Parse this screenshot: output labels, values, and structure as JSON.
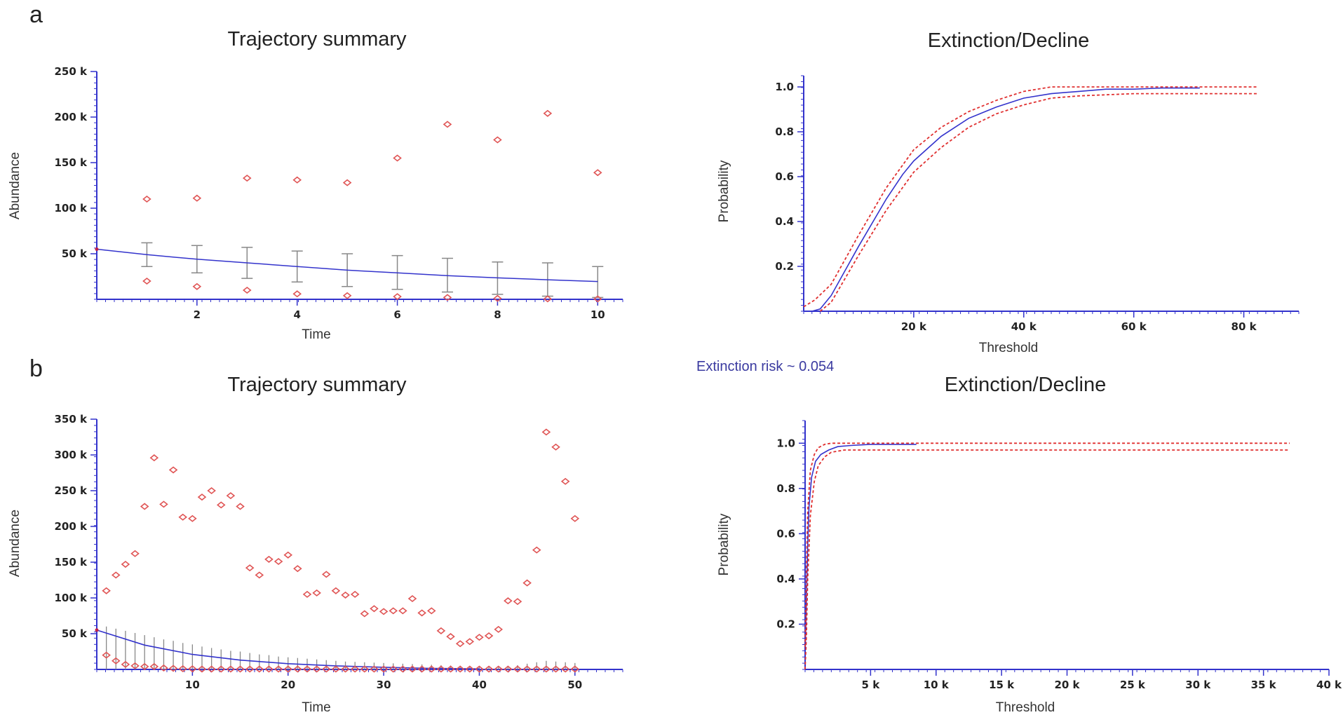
{
  "panels": {
    "a": "a",
    "b": "b"
  },
  "extinction_risk_text": "Extinction risk ~ 0.054",
  "colors": {
    "mean_line": "#3333cc",
    "markers": "#e05555",
    "error_bars": "#888888",
    "axis": "#3333cc",
    "bounds": "#e03030"
  },
  "chart_data": [
    {
      "id": "a-trajectory",
      "type": "line",
      "title": "Trajectory summary",
      "xlabel": "Time",
      "ylabel": "Abundance",
      "xlim": [
        0,
        10.5
      ],
      "ylim": [
        0,
        250000
      ],
      "xticks": [
        2,
        4,
        6,
        8,
        10
      ],
      "xtick_labels": [
        "2",
        "4",
        "6",
        "8",
        "10"
      ],
      "yticks": [
        50000,
        100000,
        150000,
        200000,
        250000
      ],
      "ytick_labels": [
        "50 k",
        "100 k",
        "150 k",
        "200 k",
        "250 k"
      ],
      "x": [
        0,
        1,
        2,
        3,
        4,
        5,
        6,
        7,
        8,
        9,
        10
      ],
      "mean": [
        55000,
        49000,
        44000,
        40000,
        36000,
        32000,
        29000,
        26000,
        23500,
        21500,
        19500
      ],
      "lower": [
        55000,
        36000,
        29000,
        23000,
        19000,
        14000,
        11000,
        8000,
        5500,
        3500,
        2000
      ],
      "upper": [
        55000,
        62000,
        59000,
        57000,
        53000,
        50000,
        48000,
        45000,
        41000,
        40000,
        36000
      ],
      "max": [
        null,
        110000,
        111000,
        133000,
        131000,
        128000,
        155000,
        192000,
        175000,
        204000,
        139000
      ],
      "min": [
        null,
        20000,
        14000,
        10000,
        6000,
        4000,
        3000,
        2000,
        1000,
        500,
        500
      ]
    },
    {
      "id": "a-extinction",
      "type": "line",
      "title": "Extinction/Decline",
      "xlabel": "Threshold",
      "ylabel": "Probability",
      "xlim": [
        0,
        90000
      ],
      "ylim": [
        0,
        1.05
      ],
      "xticks": [
        20000,
        40000,
        60000,
        80000
      ],
      "xtick_labels": [
        "20 k",
        "40 k",
        "60 k",
        "80 k"
      ],
      "yticks": [
        0.2,
        0.4,
        0.6,
        0.8,
        1.0
      ],
      "ytick_labels": [
        "0.2",
        "0.4",
        "0.6",
        "0.8",
        "1.0"
      ],
      "series": [
        {
          "name": "probability",
          "style": "solid",
          "x": [
            1500,
            3000,
            5000,
            10000,
            15000,
            18000,
            20000,
            25000,
            30000,
            35000,
            40000,
            45000,
            50000,
            55000,
            60000,
            65000,
            70000,
            72000
          ],
          "values": [
            0,
            0.01,
            0.07,
            0.29,
            0.5,
            0.61,
            0.67,
            0.78,
            0.86,
            0.91,
            0.95,
            0.97,
            0.98,
            0.99,
            0.99,
            0.995,
            0.995,
            0.995
          ]
        },
        {
          "name": "upper bound",
          "style": "dashed",
          "x": [
            0,
            2000,
            5000,
            10000,
            15000,
            20000,
            25000,
            30000,
            35000,
            40000,
            45000,
            50000,
            60000,
            70000,
            80000,
            82500
          ],
          "values": [
            0.02,
            0.05,
            0.12,
            0.34,
            0.55,
            0.72,
            0.82,
            0.89,
            0.94,
            0.98,
            1.0,
            1.0,
            1.0,
            1.0,
            1.0,
            1.0
          ]
        },
        {
          "name": "lower bound",
          "style": "dashed",
          "x": [
            3000,
            5000,
            10000,
            15000,
            20000,
            25000,
            30000,
            35000,
            40000,
            45000,
            50000,
            60000,
            70000,
            80000,
            82500
          ],
          "values": [
            0,
            0.04,
            0.25,
            0.45,
            0.62,
            0.73,
            0.82,
            0.88,
            0.92,
            0.95,
            0.96,
            0.97,
            0.97,
            0.97,
            0.97
          ]
        }
      ]
    },
    {
      "id": "b-trajectory",
      "type": "line",
      "title": "Trajectory summary",
      "xlabel": "Time",
      "ylabel": "Abundance",
      "xlim": [
        0,
        55
      ],
      "ylim": [
        0,
        350000
      ],
      "xticks": [
        10,
        20,
        30,
        40,
        50
      ],
      "xtick_labels": [
        "10",
        "20",
        "30",
        "40",
        "50"
      ],
      "yticks": [
        50000,
        100000,
        150000,
        200000,
        250000,
        300000,
        350000
      ],
      "ytick_labels": [
        "50 k",
        "100 k",
        "150 k",
        "200 k",
        "250 k",
        "300 k",
        "350 k"
      ],
      "x": [
        0,
        5,
        10,
        15,
        20,
        25,
        30,
        35,
        40
      ],
      "mean": [
        55000,
        34000,
        21000,
        13000,
        8000,
        5000,
        3000,
        1500,
        800
      ],
      "upper_bar_x": [
        1,
        2,
        3,
        4,
        5,
        6,
        7,
        8,
        9,
        10,
        11,
        12,
        13,
        14,
        15,
        16,
        17,
        18,
        19,
        20,
        21,
        22,
        23,
        24,
        25,
        26,
        27,
        28,
        29,
        30,
        31,
        32,
        33,
        34,
        35,
        36,
        37,
        38,
        39,
        40,
        41,
        42,
        43,
        44,
        45,
        46,
        47,
        48,
        49,
        50
      ],
      "upper_bar_values": [
        60000,
        57000,
        54000,
        51000,
        48000,
        45000,
        42000,
        40000,
        37000,
        35000,
        32000,
        30000,
        28000,
        26000,
        25000,
        23000,
        21000,
        20000,
        18000,
        17000,
        16000,
        15000,
        14000,
        13000,
        12000,
        11000,
        10500,
        10000,
        9500,
        9000,
        8500,
        8000,
        7500,
        7000,
        6500,
        6000,
        5500,
        5200,
        5000,
        4800,
        4500,
        4500,
        5000,
        6000,
        8000,
        10000,
        12000,
        11000,
        10000,
        9000
      ],
      "max_x": [
        1,
        2,
        3,
        4,
        5,
        6,
        7,
        8,
        9,
        10,
        11,
        12,
        13,
        14,
        15,
        16,
        17,
        18,
        19,
        20,
        21,
        22,
        23,
        24,
        25,
        26,
        27,
        28,
        29,
        30,
        31,
        32,
        33,
        34,
        35,
        36,
        37,
        38,
        39,
        40,
        41,
        42,
        43,
        44,
        45,
        46,
        47,
        48,
        49,
        50
      ],
      "max": [
        110000,
        132000,
        147000,
        162000,
        228000,
        296000,
        231000,
        279000,
        213000,
        211000,
        241000,
        250000,
        230000,
        243000,
        228000,
        142000,
        132000,
        154000,
        151000,
        160000,
        141000,
        105000,
        107000,
        133000,
        110000,
        104000,
        105000,
        78000,
        85000,
        81000,
        82000,
        82000,
        99000,
        79000,
        82000,
        54000,
        46000,
        36000,
        39000,
        45000,
        47000,
        56000,
        96000,
        95000,
        121000,
        167000,
        332000,
        311000,
        263000,
        211000
      ],
      "min_x": [
        1,
        2,
        3,
        4,
        5,
        6,
        7,
        8,
        9,
        10,
        11,
        12,
        13,
        14,
        15,
        16,
        17,
        18,
        19,
        20,
        21,
        22,
        23,
        24,
        25,
        26,
        27,
        28,
        29,
        30,
        31,
        32,
        33,
        34,
        35,
        36,
        37,
        38,
        39,
        40,
        41,
        42,
        43,
        44,
        45,
        46,
        47,
        48,
        49,
        50
      ],
      "min": [
        20000,
        12000,
        7000,
        5000,
        4000,
        4000,
        2000,
        1500,
        1000,
        800,
        500,
        500,
        500,
        500,
        500,
        500,
        500,
        500,
        500,
        500,
        500,
        500,
        500,
        500,
        500,
        500,
        500,
        500,
        500,
        500,
        500,
        500,
        500,
        500,
        500,
        500,
        500,
        500,
        500,
        500,
        500,
        500,
        500,
        500,
        500,
        500,
        500,
        500,
        500,
        500
      ]
    },
    {
      "id": "b-extinction",
      "type": "line",
      "title": "Extinction/Decline",
      "xlabel": "Threshold",
      "ylabel": "Probability",
      "xlim": [
        0,
        40000
      ],
      "ylim": [
        0,
        1.1
      ],
      "xticks": [
        5000,
        10000,
        15000,
        20000,
        25000,
        30000,
        35000,
        40000
      ],
      "xtick_labels": [
        "5 k",
        "10 k",
        "15 k",
        "20 k",
        "25 k",
        "30 k",
        "35 k",
        "40 k"
      ],
      "yticks": [
        0.2,
        0.4,
        0.6,
        0.8,
        1.0
      ],
      "ytick_labels": [
        "0.2",
        "0.4",
        "0.6",
        "0.8",
        "1.0"
      ],
      "series": [
        {
          "name": "probability",
          "style": "solid",
          "x": [
            0,
            100,
            200,
            300,
            500,
            800,
            1200,
            1800,
            2500,
            3500,
            5000,
            6500,
            8500
          ],
          "values": [
            0.05,
            0.3,
            0.55,
            0.72,
            0.85,
            0.92,
            0.95,
            0.97,
            0.985,
            0.99,
            0.995,
            0.995,
            0.995
          ]
        },
        {
          "name": "upper bound",
          "style": "dashed",
          "x": [
            0,
            100,
            200,
            400,
            700,
            1000,
            1500,
            2000,
            3000,
            5000,
            10000,
            20000,
            30000,
            37000
          ],
          "values": [
            0.1,
            0.45,
            0.7,
            0.88,
            0.95,
            0.98,
            0.995,
            1.0,
            1.0,
            1.0,
            1.0,
            1.0,
            1.0,
            1.0
          ]
        },
        {
          "name": "lower bound",
          "style": "dashed",
          "x": [
            0,
            100,
            200,
            400,
            700,
            1000,
            1500,
            2000,
            3000,
            5000,
            10000,
            20000,
            30000,
            37000
          ],
          "values": [
            0.0,
            0.15,
            0.4,
            0.68,
            0.83,
            0.9,
            0.94,
            0.96,
            0.97,
            0.97,
            0.97,
            0.97,
            0.97,
            0.97
          ]
        }
      ]
    }
  ]
}
